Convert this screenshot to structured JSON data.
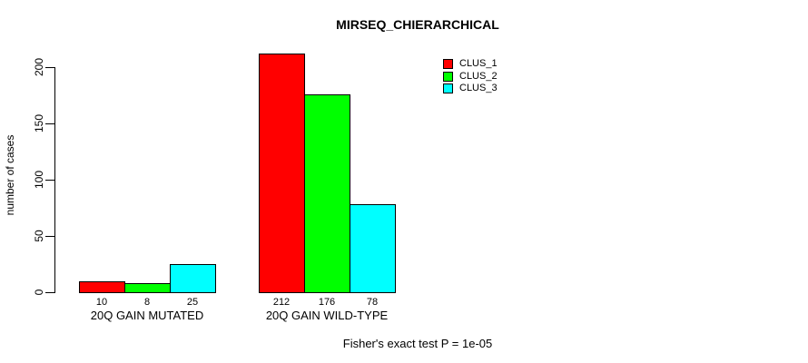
{
  "title": "MIRSEQ_CHIERARCHICAL",
  "footer_note": "Fisher's exact test P = 1e-05",
  "chart_data": {
    "type": "bar",
    "title": "MIRSEQ_CHIERARCHICAL",
    "xlabel": "",
    "ylabel": "number of cases",
    "categories": [
      "20Q GAIN MUTATED",
      "20Q GAIN WILD-TYPE"
    ],
    "series": [
      {
        "name": "CLUS_1",
        "color": "#ff0000",
        "values": [
          10,
          212
        ]
      },
      {
        "name": "CLUS_2",
        "color": "#00ff00",
        "values": [
          8,
          176
        ]
      },
      {
        "name": "CLUS_3",
        "color": "#00ffff",
        "values": [
          25,
          78
        ]
      }
    ],
    "bar_value_labels": [
      [
        "10",
        "8",
        "25"
      ],
      [
        "212",
        "176",
        "78"
      ]
    ],
    "yticks": [
      0,
      50,
      100,
      150,
      200
    ],
    "ylim": [
      0,
      212
    ],
    "grid": false,
    "legend_position": "top-right",
    "annotation": "Fisher's exact test P = 1e-05"
  }
}
